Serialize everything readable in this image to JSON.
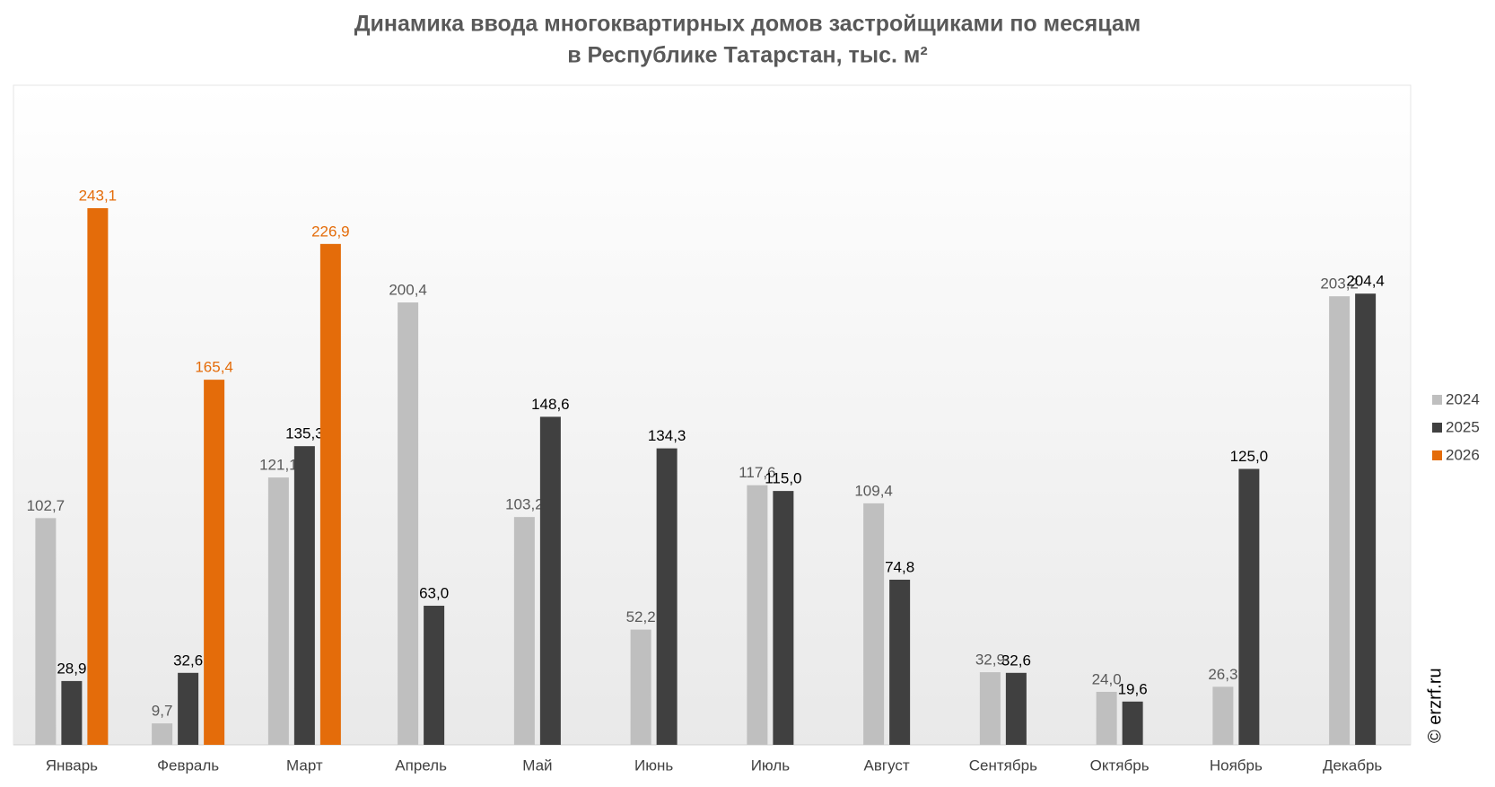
{
  "chart_data": {
    "type": "bar",
    "title": [
      "Динамика ввода многоквартирных домов застройщиками по месяцам",
      "в Республике Татарстан, тыс. м²"
    ],
    "watermark": "© erzrf.ru",
    "categories": [
      "Январь",
      "Февраль",
      "Март",
      "Апрель",
      "Май",
      "Июнь",
      "Июль",
      "Август",
      "Сентябрь",
      "Октябрь",
      "Ноябрь",
      "Декабрь"
    ],
    "series": [
      {
        "name": "2024",
        "color": "#bfbfbf",
        "label_color": "#595959",
        "values": [
          102.7,
          9.7,
          121.1,
          200.4,
          103.2,
          52.2,
          117.6,
          109.4,
          32.9,
          24.0,
          26.3,
          203.2
        ],
        "value_labels": [
          "102,7",
          "9,7",
          "121,1",
          "200,4",
          "103,2",
          "52,2",
          "117,6",
          "109,4",
          "32,9",
          "24,0",
          "26,3",
          "203,2"
        ]
      },
      {
        "name": "2025",
        "color": "#404040",
        "label_color": "#000000",
        "values": [
          28.9,
          32.6,
          135.3,
          63.0,
          148.6,
          134.3,
          115.0,
          74.8,
          32.6,
          19.6,
          125.0,
          204.4
        ],
        "value_labels": [
          "28,9",
          "32,6",
          "135,3",
          "63,0",
          "148,6",
          "134,3",
          "115,0",
          "74,8",
          "32,6",
          "19,6",
          "125,0",
          "204,4"
        ]
      },
      {
        "name": "2026",
        "color": "#e46c0a",
        "label_color": "#e46c0a",
        "values": [
          243.1,
          165.4,
          226.9,
          null,
          null,
          null,
          null,
          null,
          null,
          null,
          null,
          null
        ],
        "value_labels": [
          "243,1",
          "165,4",
          "226,9",
          null,
          null,
          null,
          null,
          null,
          null,
          null,
          null,
          null
        ]
      }
    ]
  }
}
